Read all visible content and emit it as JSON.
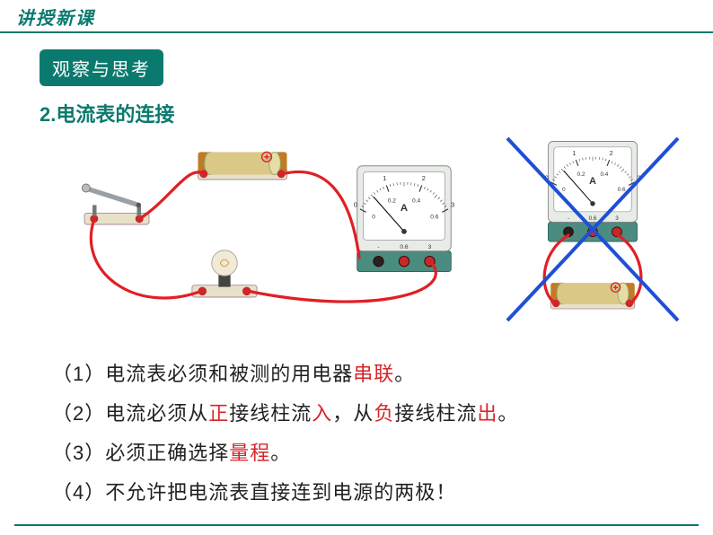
{
  "colors": {
    "teal": "#0b7a6e",
    "red": "#d8262b",
    "blue_x": "#1e4fd6",
    "text": "#222222",
    "ammeter_body": "#e8ece7",
    "ammeter_base": "#4a8c7f",
    "ammeter_face": "#ffffff",
    "battery_body": "#d9c886",
    "battery_ends": "#c07b25",
    "battery_term_red": "#d8262b",
    "wire_red": "#e01f26",
    "terminal_block": "#e8e1c9",
    "terminal_stud": "#c52a2a",
    "switch_arm": "#9aa0a6",
    "bulb_glass": "#f0ead6",
    "bulb_base": "#444444"
  },
  "header": {
    "title": "讲授新课"
  },
  "badge": {
    "text": "观察与思考"
  },
  "section": {
    "num_title": "2.电流表的连接"
  },
  "rules": {
    "r1_a": "（1）电流表必须和被测的用电器",
    "r1_b": "串联",
    "r1_c": "。",
    "r2_a": "（2）电流必须从",
    "r2_b": "正",
    "r2_c": "接线柱流",
    "r2_d": "入",
    "r2_e": "，从",
    "r2_f": "负",
    "r2_g": "接线柱流",
    "r2_h": "出",
    "r2_i": "。",
    "r3_a": "（3）必须正确选择",
    "r3_b": "量程",
    "r3_c": "。",
    "r4": "（4）不允许把电流表直接连到电源的两极！"
  },
  "ammeter": {
    "unit": "A",
    "ticks_outer": [
      "0",
      "1",
      "2",
      "3"
    ],
    "ticks_inner": [
      "0",
      "0.2",
      "0.4",
      "0.6"
    ],
    "terminal_labels": [
      "-",
      "0.6",
      "3"
    ]
  }
}
